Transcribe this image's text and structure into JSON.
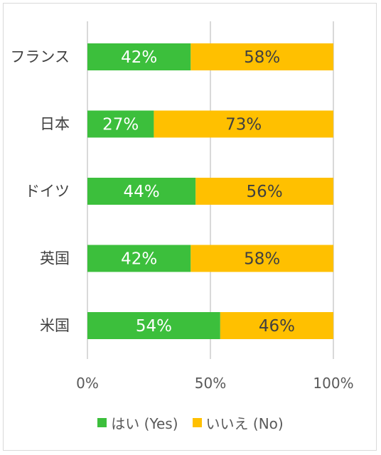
{
  "colors": {
    "yes": "#3cbf3c",
    "no": "#ffc000",
    "grid": "#d9d9d9",
    "yes_label": "#ffffff",
    "no_label": "#404040"
  },
  "chart_data": {
    "type": "bar",
    "orientation": "horizontal",
    "stacked": "100%",
    "categories": [
      "フランス",
      "日本",
      "ドイツ",
      "英国",
      "米国"
    ],
    "series": [
      {
        "name": "はい (Yes)",
        "values": [
          42,
          27,
          44,
          42,
          54
        ],
        "labels": [
          "42%",
          "27%",
          "44%",
          "42%",
          "54%"
        ]
      },
      {
        "name": "いいえ (No)",
        "values": [
          58,
          73,
          56,
          58,
          46
        ],
        "labels": [
          "58%",
          "73%",
          "56%",
          "58%",
          "46%"
        ]
      }
    ],
    "x_ticks": [
      "0%",
      "50%",
      "100%"
    ],
    "xlim": [
      0,
      100
    ],
    "grid": true,
    "legend": "bottom"
  }
}
